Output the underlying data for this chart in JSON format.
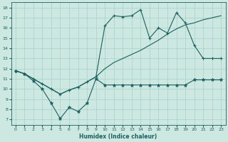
{
  "xlabel": "Humidex (Indice chaleur)",
  "background_color": "#cce8e0",
  "grid_color": "#a8d0c8",
  "line_color": "#1a6060",
  "xlim": [
    -0.5,
    23.5
  ],
  "ylim": [
    6.5,
    18.5
  ],
  "xticks": [
    0,
    1,
    2,
    3,
    4,
    5,
    6,
    7,
    8,
    9,
    10,
    11,
    12,
    13,
    14,
    15,
    16,
    17,
    18,
    19,
    20,
    21,
    22,
    23
  ],
  "yticks": [
    7,
    8,
    9,
    10,
    11,
    12,
    13,
    14,
    15,
    16,
    17,
    18
  ],
  "line_bottom_x": [
    0,
    1,
    2,
    3,
    4,
    5,
    6,
    7,
    8,
    9,
    10,
    11,
    12,
    13,
    14,
    15,
    16,
    17,
    18,
    19,
    20,
    21,
    22,
    23
  ],
  "line_bottom_y": [
    11.8,
    11.5,
    10.8,
    10.0,
    8.6,
    7.1,
    8.2,
    7.8,
    8.6,
    11.0,
    10.4,
    10.4,
    10.4,
    10.4,
    10.4,
    10.4,
    10.4,
    10.4,
    10.4,
    10.4,
    10.9,
    10.9,
    10.9,
    10.9
  ],
  "line_diag_x": [
    0,
    1,
    2,
    3,
    4,
    5,
    6,
    7,
    8,
    9,
    10,
    11,
    12,
    13,
    14,
    15,
    16,
    17,
    18,
    19,
    20,
    21,
    22,
    23
  ],
  "line_diag_y": [
    11.8,
    11.5,
    11.0,
    10.5,
    10.0,
    9.5,
    9.9,
    10.2,
    10.7,
    11.2,
    12.0,
    12.6,
    13.0,
    13.4,
    13.8,
    14.3,
    14.8,
    15.4,
    15.9,
    16.3,
    16.5,
    16.8,
    17.0,
    17.2
  ],
  "line_top_x": [
    0,
    1,
    2,
    3,
    4,
    5,
    6,
    7,
    8,
    9,
    10,
    11,
    12,
    13,
    14,
    15,
    16,
    17,
    18,
    19,
    20,
    21,
    22,
    23
  ],
  "line_top_y": [
    11.8,
    11.5,
    11.0,
    10.5,
    10.0,
    9.5,
    9.9,
    10.2,
    10.7,
    11.2,
    16.2,
    17.2,
    17.1,
    17.2,
    17.8,
    15.0,
    16.0,
    15.5,
    17.5,
    16.5,
    14.3,
    13.0,
    13.0,
    13.0
  ]
}
